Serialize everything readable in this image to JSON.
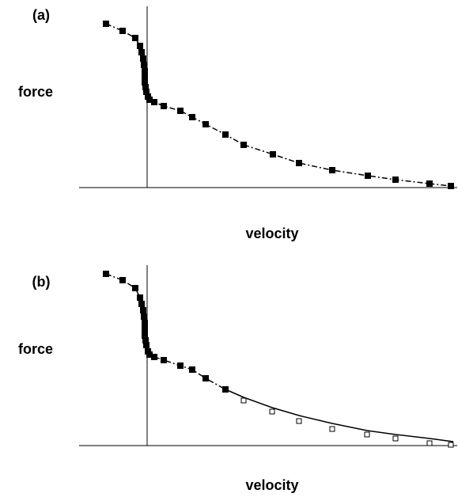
{
  "chart_data": [
    {
      "type": "line",
      "label": "(a)",
      "ylabel": "force",
      "xlabel": "velocity",
      "xlim": [
        -86,
        392
      ],
      "ylim": [
        0,
        229
      ],
      "series": [
        {
          "color": "#000000",
          "style": "dash-dot",
          "marker": "filled",
          "x": [
            -52,
            -31,
            -15,
            -9,
            -7,
            -5,
            -4,
            -3,
            -3,
            -3,
            -2,
            -1,
            1,
            3,
            9,
            21,
            42,
            57,
            74,
            99,
            122,
            159,
            192,
            234,
            279,
            314,
            357,
            384
          ],
          "values": [
            207,
            198,
            189,
            179,
            171,
            163,
            155,
            147,
            139,
            133,
            127,
            121,
            115,
            111,
            108,
            103,
            97,
            89,
            80,
            67,
            54,
            42,
            31,
            22,
            15,
            10,
            5,
            2
          ]
        }
      ]
    },
    {
      "type": "line",
      "label": "(b)",
      "ylabel": "force",
      "xlabel": "velocity",
      "xlim": [
        -86,
        392
      ],
      "ylim": [
        0,
        228
      ],
      "series": [
        {
          "color": "#000000",
          "style": "dash-dot",
          "marker": "filled",
          "x": [
            -52,
            -31,
            -15,
            -9,
            -7,
            -5,
            -4,
            -3,
            -3,
            -3,
            -2,
            -1,
            1,
            3,
            9,
            21,
            42,
            57,
            74,
            99
          ],
          "values": [
            217,
            209,
            199,
            187,
            179,
            171,
            163,
            155,
            147,
            139,
            133,
            127,
            119,
            115,
            112,
            108,
            101,
            96,
            85,
            71
          ]
        },
        {
          "color": "#000000",
          "style": "none",
          "marker": "open",
          "x": [
            122,
            158,
            192,
            234,
            278,
            314,
            357,
            384
          ],
          "values": [
            57,
            43,
            31,
            21,
            14,
            9,
            3,
            1
          ]
        },
        {
          "color": "#000000",
          "style": "solid",
          "marker": "none",
          "x": [
            99,
            122,
            158,
            192,
            234,
            278,
            314,
            357,
            387
          ],
          "values": [
            71,
            61,
            48,
            38,
            28,
            19,
            14,
            9,
            5
          ]
        }
      ]
    }
  ]
}
